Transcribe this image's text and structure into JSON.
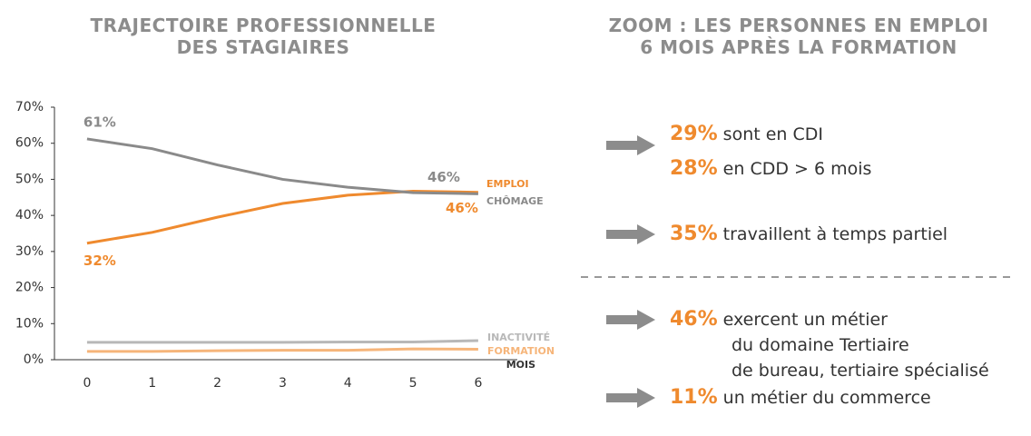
{
  "chart_data": {
    "type": "line",
    "title": [
      "TRAJECTOIRE PROFESSIONNELLE",
      "DES STAGIAIRES"
    ],
    "x": [
      0,
      1,
      2,
      3,
      4,
      5,
      6
    ],
    "xlim": [
      -0.5,
      6.6
    ],
    "xticks": [
      0,
      1,
      2,
      3,
      4,
      5,
      6
    ],
    "x_label": "MOIS",
    "ylim": [
      0,
      70
    ],
    "yticks": [
      {
        "value": 0,
        "label": "0%"
      },
      {
        "value": 10,
        "label": "10%"
      },
      {
        "value": 20,
        "label": "20%"
      },
      {
        "value": 30,
        "label": "30%"
      },
      {
        "value": 40,
        "label": "40%"
      },
      {
        "value": 50,
        "label": "50%"
      },
      {
        "value": 60,
        "label": "60%"
      },
      {
        "value": 70,
        "label": "70%"
      }
    ],
    "grid": false,
    "series": [
      {
        "name": "EMPLOI",
        "color": "#ef8a2e",
        "values": [
          32.3,
          35.3,
          39.5,
          43.3,
          45.6,
          46.7,
          46.4
        ],
        "value_labels": [
          "32%",
          null,
          null,
          null,
          null,
          null,
          "46%"
        ]
      },
      {
        "name": "CHÔMAGE",
        "color": "#8a8a8a",
        "values": [
          61.2,
          58.5,
          54,
          50,
          47.8,
          46.3,
          46
        ],
        "value_labels": [
          "61%",
          null,
          null,
          null,
          null,
          null,
          "46%"
        ]
      },
      {
        "name": "INACTIVITÉ",
        "color": "#b8b8b8",
        "values": [
          4.8,
          4.8,
          4.8,
          4.8,
          4.9,
          4.9,
          5.3
        ]
      },
      {
        "name": "FORMATION",
        "color": "#f6b57a",
        "values": [
          2.3,
          2.3,
          2.5,
          2.6,
          2.6,
          3,
          2.9
        ]
      }
    ]
  },
  "zoom": {
    "title": [
      "ZOOM : LES PERSONNES EN EMPLOI",
      "6 MOIS APRÈS LA FORMATION"
    ],
    "blocks": [
      {
        "rows": [
          {
            "pct": "29%",
            "text": [
              "sont en CDI"
            ]
          },
          {
            "pct": "28%",
            "text": [
              "en CDD > 6 mois"
            ]
          }
        ]
      },
      {
        "rows": [
          {
            "pct": "35%",
            "text": [
              "travaillent à temps partiel"
            ]
          }
        ]
      },
      {
        "rows": [
          {
            "pct": "46%",
            "text": [
              "exercent un métier",
              "du domaine Tertiaire",
              "de bureau, tertiaire spécialisé"
            ]
          }
        ]
      },
      {
        "rows": [
          {
            "pct": "11%",
            "text": [
              "un métier du commerce"
            ]
          }
        ]
      }
    ]
  }
}
